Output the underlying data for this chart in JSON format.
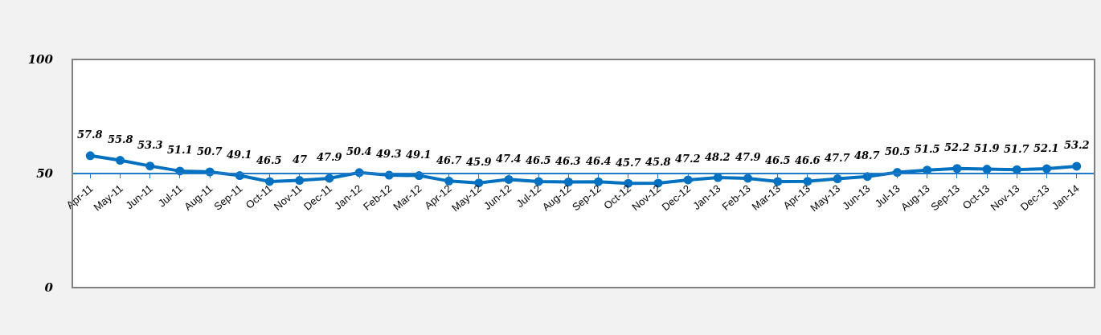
{
  "chart_data": {
    "type": "line",
    "categories": [
      "Apr-11",
      "May-11",
      "Jun-11",
      "Jul-11",
      "Aug-11",
      "Sep-11",
      "Oct-11",
      "Nov-11",
      "Dec-11",
      "Jan-12",
      "Feb-12",
      "Mar-12",
      "Apr-12",
      "May-12",
      "Jun-12",
      "Jul-12",
      "Aug-12",
      "Sep-12",
      "Oct-12",
      "Nov-12",
      "Dec-12",
      "Jan-13",
      "Feb-13",
      "Mar-13",
      "Apr-13",
      "May-13",
      "Jun-13",
      "Jul-13",
      "Aug-13",
      "Sep-13",
      "Oct-13",
      "Nov-13",
      "Dec-13",
      "Jan-14"
    ],
    "series": [
      {
        "color": "#0070c0",
        "values": [
          57.8,
          55.8,
          53.3,
          51.1,
          50.7,
          49.1,
          46.5,
          47,
          47.9,
          50.4,
          49.3,
          49.1,
          46.7,
          45.9,
          47.4,
          46.5,
          46.3,
          46.4,
          45.7,
          45.8,
          47.2,
          48.2,
          47.9,
          46.5,
          46.6,
          47.7,
          48.7,
          50.5,
          51.5,
          52.2,
          51.9,
          51.7,
          52.1,
          53.2
        ]
      }
    ],
    "ylim": [
      0,
      100
    ],
    "yticks": [
      0,
      50,
      100
    ],
    "data_labels": true,
    "marker": "circle",
    "line_style": "solid",
    "legend": false
  }
}
